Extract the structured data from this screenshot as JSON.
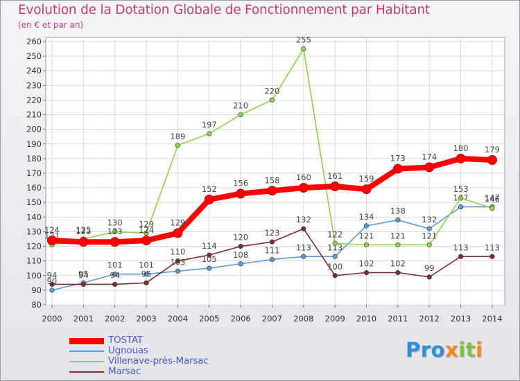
{
  "header": {
    "title": "Evolution de la Dotation Globale de Fonctionnement par Habitant",
    "subtitle": "(en € et par an)"
  },
  "logo": {
    "part1": "Pro",
    "part2": "x",
    "part3": "it",
    "part4": "i"
  },
  "chart_data": {
    "type": "line",
    "title": "Evolution de la Dotation Globale de Fonctionnement par Habitant",
    "subtitle": "(en € et par an)",
    "xlabel": "",
    "ylabel": "",
    "ylim": [
      80,
      260
    ],
    "yticks": [
      80,
      90,
      100,
      110,
      120,
      130,
      140,
      150,
      160,
      170,
      180,
      190,
      200,
      210,
      220,
      230,
      240,
      250,
      260
    ],
    "grid": true,
    "legend": "bottom-left",
    "x": [
      "2000",
      "2001",
      "2002",
      "2003",
      "2004",
      "2005",
      "2006",
      "2007",
      "2008",
      "2009",
      "2010",
      "2011",
      "2012",
      "2013",
      "2014"
    ],
    "series": [
      {
        "name": "TOSTAT",
        "color": "#ff0000",
        "values": [
          124,
          123,
          123,
          124,
          129,
          152,
          156,
          158,
          160,
          161,
          159,
          173,
          174,
          180,
          179
        ],
        "labels": [
          "124",
          "123",
          "123",
          "124",
          "129",
          "152",
          "156",
          "158",
          "160",
          "161",
          "159",
          "173",
          "174",
          "180",
          "179"
        ]
      },
      {
        "name": "Ugnouas",
        "color": "#5b9bd5",
        "values": [
          90,
          95,
          101,
          101,
          103,
          105,
          108,
          111,
          113,
          113,
          134,
          138,
          132,
          147,
          147
        ],
        "labels": [
          "90",
          "95",
          "101",
          "101",
          "103",
          "105",
          "108",
          "111",
          "113",
          "113",
          "134",
          "138",
          "132",
          "147",
          "147"
        ]
      },
      {
        "name": "Villenave-près-Marsac",
        "color": "#8cd24a",
        "values": [
          121,
          125,
          130,
          129,
          189,
          197,
          210,
          220,
          255,
          122,
          121,
          121,
          121,
          153,
          146
        ],
        "labels": [
          "121",
          "125",
          "130",
          "129",
          "189",
          "197",
          "210",
          "220",
          "255",
          "122",
          "121",
          "121",
          "121",
          "153",
          "146"
        ]
      },
      {
        "name": "Marsac",
        "color": "#7a2e32",
        "values": [
          94,
          94,
          94,
          95,
          110,
          114,
          120,
          123,
          132,
          100,
          102,
          102,
          99,
          113,
          113
        ],
        "labels": [
          "94",
          "94",
          "94",
          "95",
          "110",
          "114",
          "120",
          "123",
          "132",
          "100",
          "102",
          "102",
          "99",
          "113",
          "113"
        ]
      }
    ]
  }
}
